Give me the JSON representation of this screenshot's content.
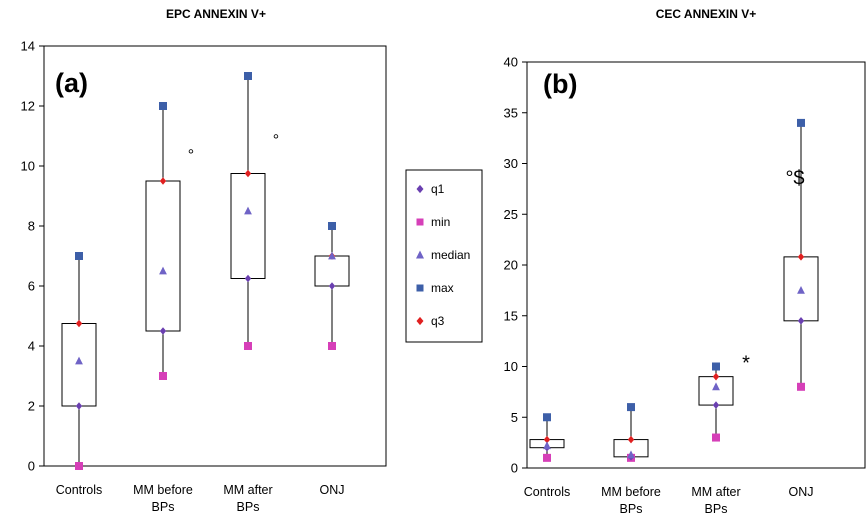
{
  "chart_data": [
    {
      "type": "box",
      "title": "EPC ANNEXIN  V+",
      "panel_label": "(a)",
      "xlabel": "",
      "ylabel": "",
      "ylim": [
        0,
        14
      ],
      "yticks": [
        0,
        2,
        4,
        6,
        8,
        10,
        12,
        14
      ],
      "categories": [
        [
          "Controls"
        ],
        [
          "MM before",
          "BPs"
        ],
        [
          "MM after",
          "BPs"
        ],
        [
          "ONJ"
        ]
      ],
      "stats": [
        {
          "min": 0,
          "q1": 2,
          "median": 3.5,
          "q3": 4.75,
          "max": 7
        },
        {
          "min": 3,
          "q1": 4.5,
          "median": 6.5,
          "q3": 9.5,
          "max": 12
        },
        {
          "min": 4,
          "q1": 6.25,
          "median": 8.5,
          "q3": 9.75,
          "max": 13
        },
        {
          "min": 4,
          "q1": 6,
          "median": 7,
          "q3": 7,
          "max": 8
        }
      ],
      "annotations": [
        {
          "text": "°",
          "category_index": 1,
          "y": 10.4
        },
        {
          "text": "°",
          "category_index": 2,
          "y": 10.9
        }
      ],
      "grid": false,
      "legend": "right"
    },
    {
      "type": "box",
      "title": "CEC ANNEXIN  V+",
      "panel_label": "(b)",
      "xlabel": "",
      "ylabel": "",
      "ylim": [
        0,
        40
      ],
      "yticks": [
        0,
        5,
        10,
        15,
        20,
        25,
        30,
        35,
        40
      ],
      "categories": [
        [
          "Controls"
        ],
        [
          "MM before",
          "BPs"
        ],
        [
          "MM after",
          "BPs"
        ],
        [
          "ONJ"
        ]
      ],
      "stats": [
        {
          "min": 1,
          "q1": 2,
          "median": 2.2,
          "q3": 2.8,
          "max": 5
        },
        {
          "min": 1,
          "q1": 1.1,
          "median": 1.3,
          "q3": 2.8,
          "max": 6
        },
        {
          "min": 3,
          "q1": 6.2,
          "median": 8,
          "q3": 9,
          "max": 10
        },
        {
          "min": 8,
          "q1": 14.5,
          "median": 17.5,
          "q3": 20.8,
          "max": 34
        }
      ],
      "annotations": [
        {
          "text": "*",
          "category_index": 2,
          "y": 10.5
        },
        {
          "text": "°$",
          "category_index": 3,
          "y": 28.5
        }
      ],
      "grid": false,
      "legend": "none"
    }
  ],
  "legend": {
    "items": [
      {
        "label": "q1",
        "marker": "diamond",
        "color": "#6a3fb0"
      },
      {
        "label": "min",
        "marker": "square",
        "color": "#d63fb8"
      },
      {
        "label": "median",
        "marker": "triangle",
        "color": "#6f63c6"
      },
      {
        "label": "max",
        "marker": "square",
        "color": "#3d5fa8"
      },
      {
        "label": "q3",
        "marker": "diamond",
        "color": "#e02020"
      }
    ]
  }
}
